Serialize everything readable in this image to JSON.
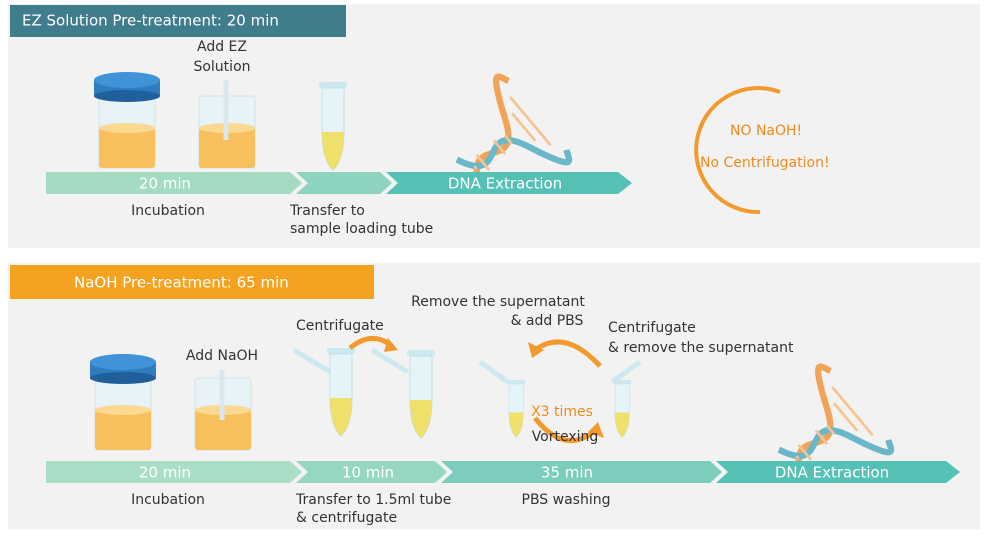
{
  "ez_panel": {
    "title": "EZ Solution Pre-treatment: 20 min",
    "add_label": [
      "Add EZ",
      "Solution"
    ],
    "bar": [
      "20 min",
      "DNA Extraction"
    ],
    "captions": {
      "incubation": "Incubation",
      "transfer": [
        "Transfer to",
        "sample loading tube"
      ]
    },
    "note": [
      "NO NaOH!",
      "No Centrifugation!"
    ]
  },
  "naoh_panel": {
    "title": "NaOH Pre-treatment: 65 min",
    "labels": {
      "centrifugate": "Centrifugate",
      "add_naoh": "Add NaOH",
      "remove_add": [
        "Remove the supernatant",
        "& add PBS"
      ],
      "centrifugate_remove": [
        "Centrifugate",
        "& remove the supernatant"
      ],
      "repeat": "X3 times",
      "vortexing": "Vortexing"
    },
    "bar": [
      "20 min",
      "10 min",
      "35 min",
      "DNA Extraction"
    ],
    "captions": {
      "incubation": "Incubation",
      "transfer": [
        "Transfer to 1.5ml tube",
        "& centrifugate"
      ],
      "washing": "PBS washing"
    }
  }
}
